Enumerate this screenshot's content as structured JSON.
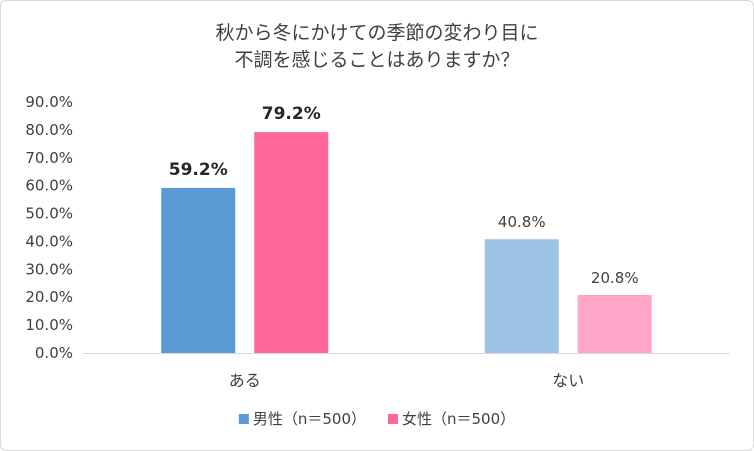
{
  "chart_data": {
    "type": "bar",
    "title": [
      "秋から冬にかけての季節の変わり目に",
      "不調を感じることはありますか？"
    ],
    "categories": [
      "ある",
      "ない"
    ],
    "ylim": [
      0,
      90
    ],
    "y_ticks": [
      "0.0%",
      "10.0%",
      "20.0%",
      "30.0%",
      "40.0%",
      "50.0%",
      "60.0%",
      "70.0%",
      "80.0%",
      "90.0%"
    ],
    "grid": false,
    "legend_position": "bottom",
    "series": [
      {
        "name": "男性（n＝500）",
        "values": [
          59.2,
          40.8
        ],
        "labels": [
          "59.2%",
          "40.8%"
        ],
        "colors": [
          "#5b9bd5",
          "#9dc3e6"
        ]
      },
      {
        "name": "女性（n＝500）",
        "values": [
          79.2,
          20.8
        ],
        "labels": [
          "79.2%",
          "20.8%"
        ],
        "colors": [
          "#ff6699",
          "#ffa6c8"
        ]
      }
    ],
    "emphasized_category": 0
  }
}
